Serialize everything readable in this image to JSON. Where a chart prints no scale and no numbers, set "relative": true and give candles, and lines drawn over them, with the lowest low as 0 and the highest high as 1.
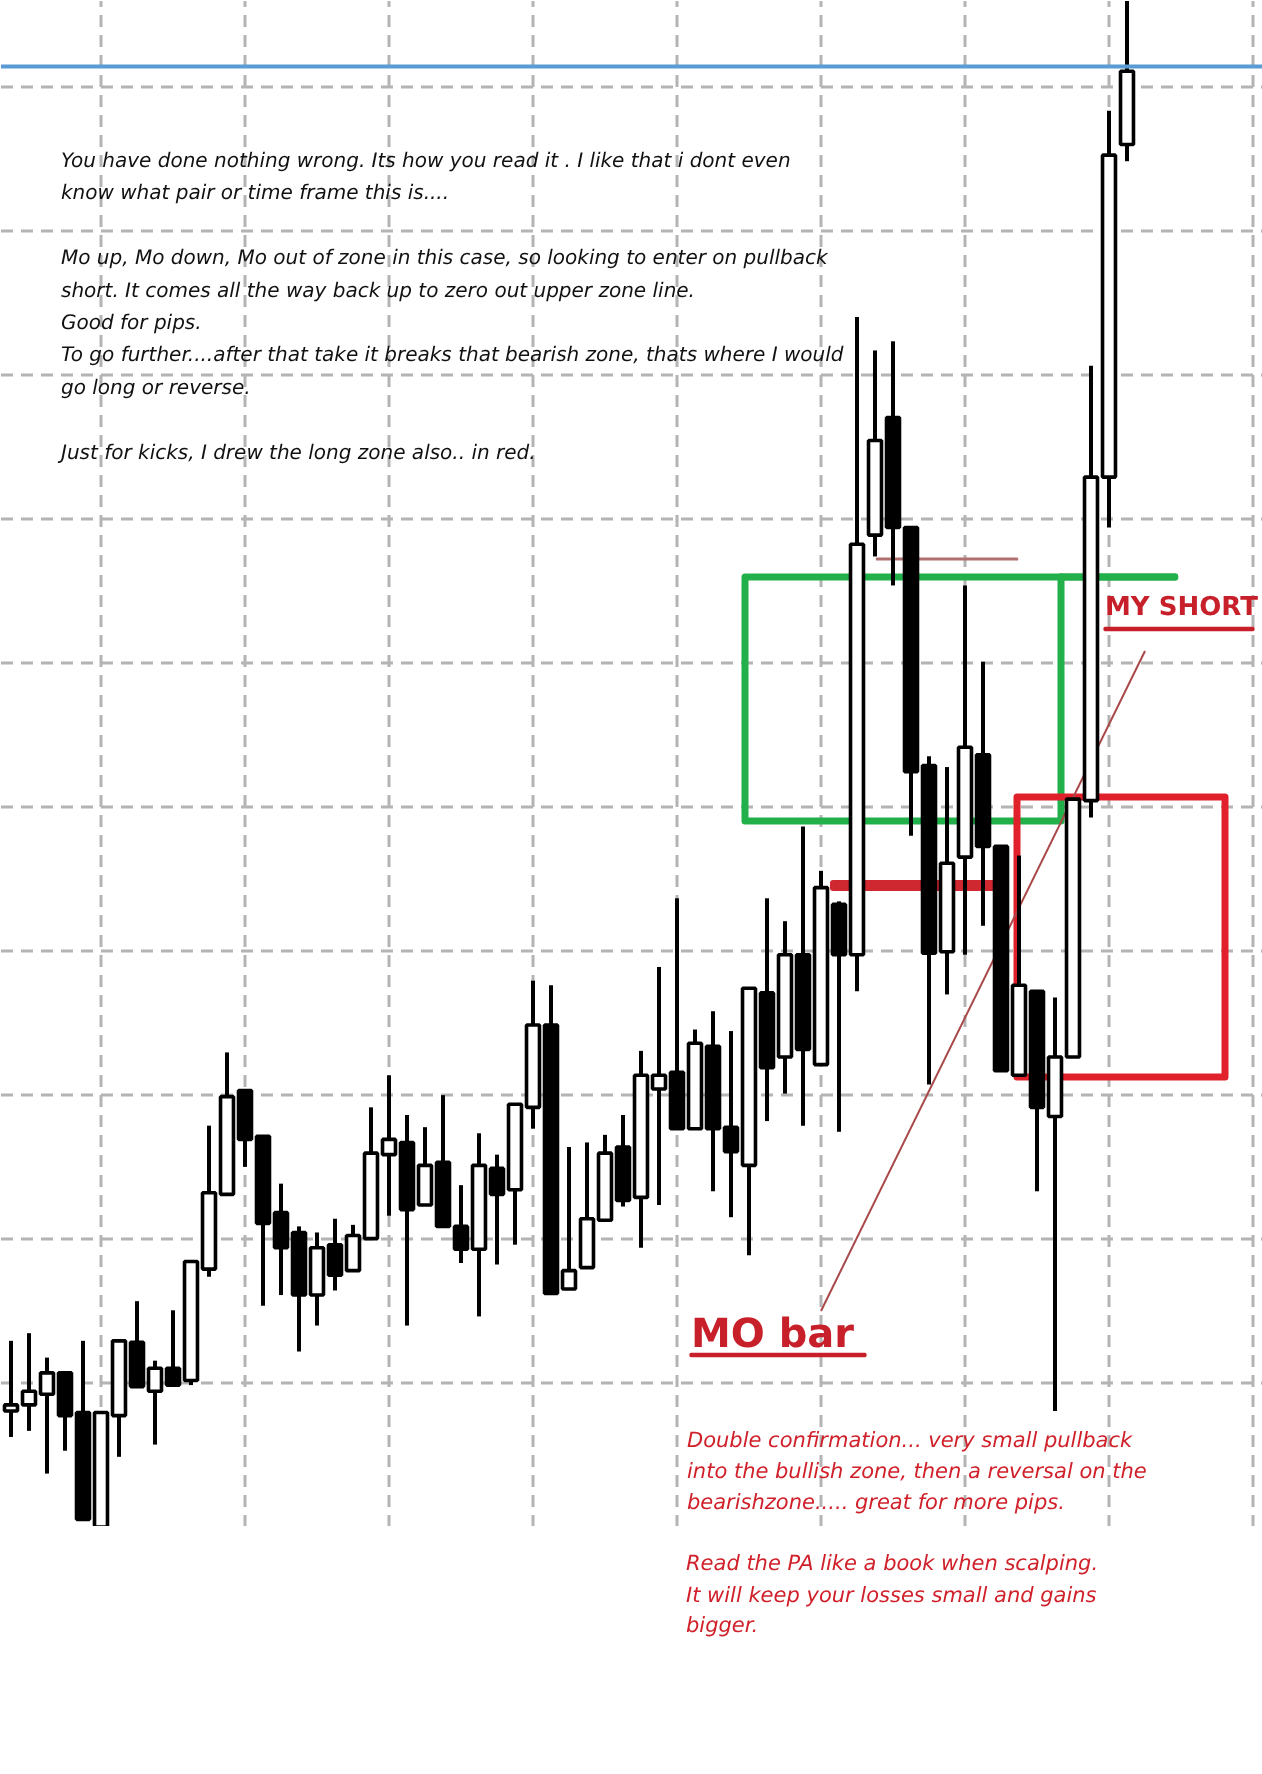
{
  "chart_data": {
    "type": "candlestick",
    "relative": true,
    "grid": true,
    "categories": [
      null,
      null,
      null,
      null,
      null,
      null,
      null,
      null,
      null,
      null,
      null,
      null,
      null,
      null,
      null,
      null,
      null,
      null,
      null,
      null,
      null,
      null,
      null,
      null,
      null,
      null,
      null,
      null,
      null,
      null,
      null,
      null,
      null,
      null,
      null,
      null,
      null,
      null,
      null,
      null,
      null,
      null,
      null,
      null,
      null,
      null,
      null,
      null,
      null,
      null,
      null,
      null,
      null,
      null,
      null,
      null,
      null,
      null,
      null,
      null,
      null,
      null,
      null
    ],
    "ohlc": [
      [
        0.076,
        0.122,
        0.059,
        0.08
      ],
      [
        0.08,
        0.127,
        0.063,
        0.089
      ],
      [
        0.087,
        0.111,
        0.035,
        0.101
      ],
      [
        0.101,
        0.101,
        0.05,
        0.073
      ],
      [
        0.075,
        0.122,
        0.005,
        0.005
      ],
      [
        0,
        0.075,
        0,
        0.075
      ],
      [
        0.073,
        0.122,
        0.046,
        0.122
      ],
      [
        0.121,
        0.148,
        0.092,
        0.092
      ],
      [
        0.089,
        0.109,
        0.054,
        0.104
      ],
      [
        0.104,
        0.142,
        0.092,
        0.093
      ],
      [
        0.096,
        0.174,
        0.093,
        0.174
      ],
      [
        0.169,
        0.263,
        0.164,
        0.219
      ],
      [
        0.218,
        0.311,
        0.218,
        0.282
      ],
      [
        0.286,
        0.286,
        0.236,
        0.254
      ],
      [
        0.256,
        0.256,
        0.145,
        0.199
      ],
      [
        0.206,
        0.225,
        0.152,
        0.183
      ],
      [
        0.193,
        0.197,
        0.115,
        0.152
      ],
      [
        0.152,
        0.193,
        0.132,
        0.183
      ],
      [
        0.185,
        0.202,
        0.155,
        0.165
      ],
      [
        0.168,
        0.198,
        0.168,
        0.191
      ],
      [
        0.189,
        0.275,
        0.189,
        0.245
      ],
      [
        0.244,
        0.296,
        0.204,
        0.254
      ],
      [
        0.252,
        0.27,
        0.132,
        0.208
      ],
      [
        0.211,
        0.262,
        0.211,
        0.237
      ],
      [
        0.239,
        0.283,
        0.197,
        0.197
      ],
      [
        0.197,
        0.224,
        0.173,
        0.182
      ],
      [
        0.182,
        0.258,
        0.138,
        0.237
      ],
      [
        0.235,
        0.244,
        0.172,
        0.218
      ],
      [
        0.221,
        0.277,
        0.185,
        0.277
      ],
      [
        0.275,
        0.358,
        0.261,
        0.329
      ],
      [
        0.329,
        0.355,
        0.153,
        0.153
      ],
      [
        0.156,
        0.249,
        0.156,
        0.168
      ],
      [
        0.17,
        0.252,
        0.17,
        0.202
      ],
      [
        0.201,
        0.257,
        0.201,
        0.245
      ],
      [
        0.249,
        0.27,
        0.21,
        0.214
      ],
      [
        0.216,
        0.312,
        0.183,
        0.296
      ],
      [
        0.287,
        0.367,
        0.211,
        0.296
      ],
      [
        0.298,
        0.412,
        0.261,
        0.261
      ],
      [
        0.261,
        0.326,
        0.261,
        0.317
      ],
      [
        0.315,
        0.338,
        0.22,
        0.261
      ],
      [
        0.262,
        0.325,
        0.203,
        0.246
      ],
      [
        0.237,
        0.353,
        0.178,
        0.353
      ],
      [
        0.35,
        0.412,
        0.266,
        0.301
      ],
      [
        0.308,
        0.397,
        0.284,
        0.375
      ],
      [
        0.375,
        0.459,
        0.263,
        0.313
      ],
      [
        0.303,
        0.43,
        0.303,
        0.419
      ],
      [
        0.408,
        0.41,
        0.259,
        0.375
      ],
      [
        0.375,
        0.793,
        0.351,
        0.644
      ],
      [
        0.65,
        0.771,
        0.636,
        0.712
      ],
      [
        0.727,
        0.777,
        0.617,
        0.655
      ],
      [
        0.655,
        0.655,
        0.453,
        0.495
      ],
      [
        0.499,
        0.505,
        0.29,
        0.376
      ],
      [
        0.377,
        0.498,
        0.349,
        0.435
      ],
      [
        0.439,
        0.617,
        0.375,
        0.511
      ],
      [
        0.506,
        0.567,
        0.394,
        0.446
      ],
      [
        0.446,
        0.446,
        0.299,
        0.299
      ],
      [
        0.296,
        0.44,
        0.296,
        0.355
      ],
      [
        0.351,
        0.351,
        0.22,
        0.275
      ],
      [
        0.269,
        0.347,
        0.076,
        0.308
      ],
      [
        0.308,
        0.477,
        0.308,
        0.477
      ],
      [
        0.476,
        0.761,
        0.465,
        0.688
      ],
      [
        0.688,
        0.928,
        0.655,
        0.899
      ],
      [
        0.906,
        1,
        0.895,
        0.954
      ]
    ],
    "ref_lines": [
      {
        "axis": "y",
        "value": 0.957,
        "color": "#5b9bd5"
      }
    ],
    "annotations": [
      "You have done nothing wrong. Its how you read it . I like that i dont even\nknow what pair or time frame this is....\n\nMo up, Mo down, Mo out of zone in this case, so looking to enter on pullback\nshort. It comes all the way back up to zero out upper zone line.\nGood for pips.\nTo go further....after that take it breaks that bearish zone, thats where I would\ngo long or reverse.\n\nJust for kicks, I drew the long zone also.. in red.",
      "MY SHORT",
      "MO bar",
      "Double confirmation... very small pullback\ninto the bullish zone, then a reversal on the\nbearishzone..... great for more pips.\n\nRead the PA like a book when scalping.\nIt will keep your losses small and gains\nbigger."
    ]
  }
}
